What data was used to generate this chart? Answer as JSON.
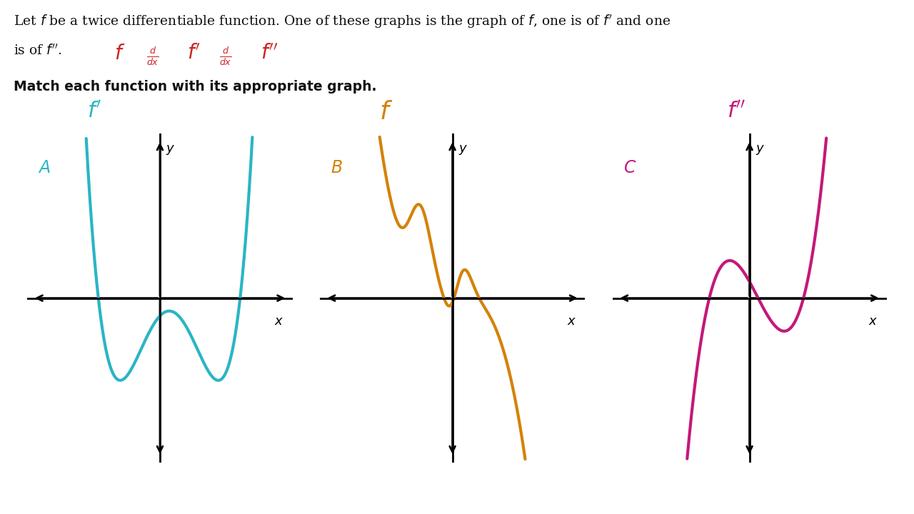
{
  "background_color": "#ffffff",
  "color_A": "#2ab5c5",
  "color_B": "#d4820a",
  "color_C": "#c4187a",
  "color_red": "#cc2222",
  "graph_positions": {
    "A": [
      0.03,
      0.1,
      0.29,
      0.64
    ],
    "B": [
      0.35,
      0.1,
      0.29,
      0.64
    ],
    "C": [
      0.67,
      0.1,
      0.3,
      0.64
    ]
  },
  "xlim": [
    -5,
    5
  ],
  "ylim": [
    -5,
    5
  ]
}
